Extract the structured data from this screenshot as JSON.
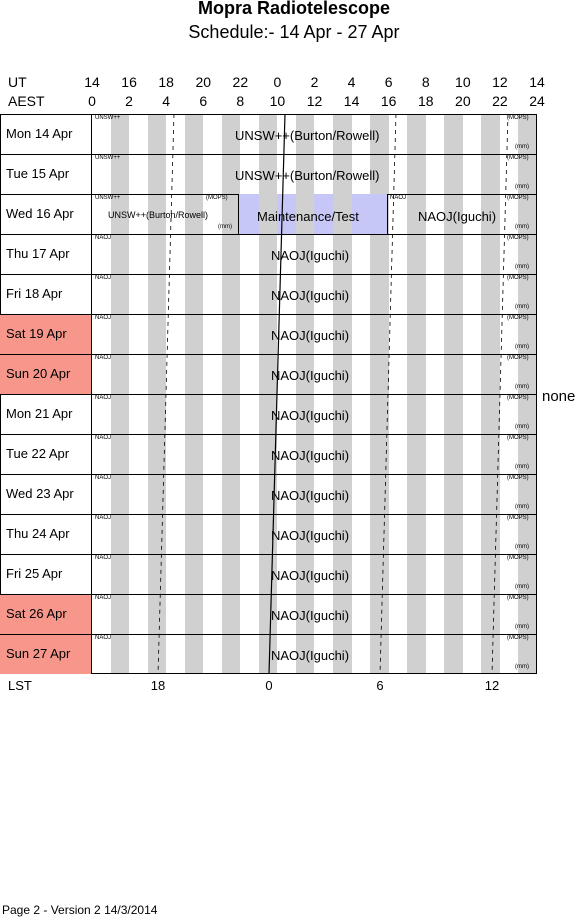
{
  "header": {
    "title": "Mopra Radiotelescope",
    "subtitle": "Schedule:- 14 Apr - 27 Apr"
  },
  "axes": {
    "ut_label": "UT",
    "aest_label": "AEST",
    "ut_ticks": [
      "14",
      "16",
      "18",
      "20",
      "22",
      "0",
      "2",
      "4",
      "6",
      "8",
      "10",
      "12",
      "14"
    ],
    "aest_ticks": [
      "0",
      "2",
      "4",
      "6",
      "8",
      "10",
      "12",
      "14",
      "16",
      "18",
      "20",
      "22",
      "24"
    ],
    "lst_label": "LST",
    "lst_ticks": [
      "18",
      "0",
      "6",
      "12"
    ]
  },
  "days": [
    {
      "label": "Mon   14 Apr",
      "weekend": false
    },
    {
      "label": "Tue   15 Apr",
      "weekend": false
    },
    {
      "label": "Wed   16 Apr",
      "weekend": false
    },
    {
      "label": "Thu   17 Apr",
      "weekend": false
    },
    {
      "label": "Fri   18 Apr",
      "weekend": false
    },
    {
      "label": "Sat   19 Apr",
      "weekend": true
    },
    {
      "label": "Sun   20 Apr",
      "weekend": true
    },
    {
      "label": "Mon   21 Apr",
      "weekend": false
    },
    {
      "label": "Tue   22 Apr",
      "weekend": false
    },
    {
      "label": "Wed   23 Apr",
      "weekend": false
    },
    {
      "label": "Thu   24 Apr",
      "weekend": false
    },
    {
      "label": "Fri   25 Apr",
      "weekend": false
    },
    {
      "label": "Sat   26 Apr",
      "weekend": true
    },
    {
      "label": "Sun   27 Apr",
      "weekend": true
    }
  ],
  "rows": [
    {
      "tag": "UNSW++",
      "main": "UNSW++(Burton/Rowell)",
      "mops": "(MOPS)",
      "mm": "(mm)"
    },
    {
      "tag": "UNSW++",
      "main": "UNSW++(Burton/Rowell)",
      "mops": "(MOPS)",
      "mm": "(mm)"
    },
    {
      "tag": "UNSW++",
      "main": "Maintenance/Test",
      "mops": "(MOPS)",
      "mm": "(mm)"
    },
    {
      "tag": "NAOJ",
      "main": "NAOJ(Iguchi)",
      "mops": "(MOPS)",
      "mm": "(mm)"
    },
    {
      "tag": "NAOJ",
      "main": "NAOJ(Iguchi)",
      "mops": "(MOPS)",
      "mm": "(mm)"
    },
    {
      "tag": "NAOJ",
      "main": "NAOJ(Iguchi)",
      "mops": "(MOPS)",
      "mm": "(mm)"
    },
    {
      "tag": "NAOJ",
      "main": "NAOJ(Iguchi)",
      "mops": "(MOPS)",
      "mm": "(mm)"
    },
    {
      "tag": "NAOJ",
      "main": "NAOJ(Iguchi)",
      "mops": "(MOPS)",
      "mm": "(mm)"
    },
    {
      "tag": "NAOJ",
      "main": "NAOJ(Iguchi)",
      "mops": "(MOPS)",
      "mm": "(mm)"
    },
    {
      "tag": "NAOJ",
      "main": "NAOJ(Iguchi)",
      "mops": "(MOPS)",
      "mm": "(mm)"
    },
    {
      "tag": "NAOJ",
      "main": "NAOJ(Iguchi)",
      "mops": "(MOPS)",
      "mm": "(mm)"
    },
    {
      "tag": "NAOJ",
      "main": "NAOJ(Iguchi)",
      "mops": "(MOPS)",
      "mm": "(mm)"
    },
    {
      "tag": "NAOJ",
      "main": "NAOJ(Iguchi)",
      "mops": "(MOPS)",
      "mm": "(mm)"
    },
    {
      "tag": "NAOJ",
      "main": "NAOJ(Iguchi)",
      "mops": "(MOPS)",
      "mm": "(mm)"
    }
  ],
  "wed_extra": {
    "left_main": "UNSW++(Burton/Rowell)",
    "left_mops": "(MOPS)",
    "left_mm": "(mm)",
    "right_tag": "NAOJ",
    "right_main": "NAOJ(Iguchi)"
  },
  "side_note": "none",
  "footer": "Page 2 - Version 2  14/3/2014"
}
